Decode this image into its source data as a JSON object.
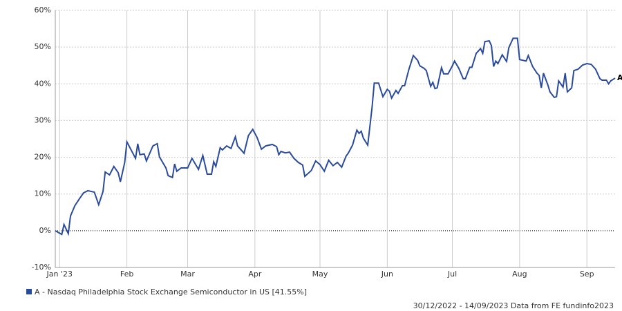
{
  "chart_data": {
    "type": "line",
    "x": [
      0,
      3,
      4,
      6,
      7,
      9,
      11,
      13,
      15,
      18,
      20,
      22,
      23,
      25,
      27,
      29,
      30,
      32,
      33,
      37,
      38,
      39,
      41,
      42,
      45,
      47,
      48,
      51,
      52,
      54,
      55,
      56,
      58,
      61,
      63,
      66,
      68,
      70,
      72,
      73,
      74,
      76,
      77,
      79,
      81,
      83,
      84,
      87,
      89,
      91,
      93,
      95,
      97,
      100,
      102,
      103,
      104,
      106,
      108,
      110,
      112,
      114,
      115,
      118,
      120,
      122,
      124,
      126,
      128,
      130,
      132,
      134,
      135,
      137,
      139,
      140,
      141,
      142,
      144,
      146,
      147,
      149,
      151,
      153,
      154,
      155,
      157,
      158,
      160,
      161,
      163,
      165,
      167,
      168,
      170,
      171,
      173,
      174,
      175,
      176,
      178,
      179,
      181,
      183,
      184,
      186,
      188,
      189,
      191,
      192,
      194,
      196,
      197,
      198,
      200,
      201,
      202,
      203,
      204,
      206,
      208,
      209,
      211,
      213,
      214,
      217,
      218,
      220,
      222,
      223,
      224,
      225,
      227,
      228,
      230,
      231,
      232,
      234,
      235,
      236,
      238,
      239,
      241,
      243,
      245,
      247,
      249,
      251,
      252,
      254,
      255,
      256,
      258
    ],
    "series": [
      {
        "name": "A - Nasdaq Philadelphia Stock Exchange Semiconductor in US [41.55%]",
        "end_label": "A",
        "color": "#2a4a9b",
        "values": [
          0,
          -1,
          1.7,
          -0.8,
          4,
          6.8,
          8.6,
          10.3,
          10.9,
          10.5,
          7.1,
          10.7,
          16,
          15.2,
          17.5,
          15.8,
          13.3,
          18.6,
          24.2,
          19.7,
          23.7,
          20.7,
          20.9,
          19,
          23.1,
          23.7,
          20.1,
          17.1,
          15,
          14.5,
          18.2,
          16.2,
          17.1,
          17.1,
          19.7,
          16.7,
          20.5,
          15.4,
          15.4,
          18.8,
          17.5,
          22.6,
          22,
          23.1,
          22.4,
          25.6,
          23.1,
          21.1,
          25.9,
          27.6,
          25.4,
          22.2,
          23.1,
          23.5,
          22.9,
          20.7,
          21.6,
          21.2,
          21.4,
          19.7,
          18.6,
          17.9,
          14.8,
          16.4,
          19,
          18,
          16.2,
          19.2,
          17.7,
          18.6,
          17.3,
          20.3,
          21.1,
          23.3,
          27.4,
          26.5,
          27.1,
          25.2,
          23.3,
          33.6,
          40.2,
          40.2,
          36.5,
          38.5,
          38,
          36.1,
          38.2,
          37.4,
          39.5,
          39.5,
          44,
          47.7,
          46.4,
          44.9,
          44.2,
          43.6,
          39.3,
          40.4,
          38.7,
          38.9,
          44.4,
          42.7,
          42.7,
          44.9,
          46.2,
          44.2,
          41.4,
          41.4,
          44.5,
          44.5,
          48.3,
          49.6,
          48.3,
          51.5,
          51.7,
          50.4,
          44.7,
          46.2,
          45.5,
          47.9,
          46.1,
          49.8,
          52.4,
          52.4,
          46.6,
          46.2,
          47.7,
          44.7,
          42.9,
          42.3,
          38.9,
          42.9,
          39.7,
          37.8,
          36.3,
          36.5,
          40.8,
          39.1,
          42.9,
          37.8,
          38.9,
          43.6,
          44,
          45.1,
          45.5,
          45.3,
          44,
          41.4,
          41,
          41,
          40,
          40.8,
          41.55
        ]
      }
    ],
    "xlim": [
      0,
      258
    ],
    "xticks": [
      {
        "value": 2,
        "label": "Jan '23"
      },
      {
        "value": 33,
        "label": "Feb"
      },
      {
        "value": 61,
        "label": "Mar"
      },
      {
        "value": 92,
        "label": "Apr"
      },
      {
        "value": 122,
        "label": "May"
      },
      {
        "value": 153,
        "label": "Jun"
      },
      {
        "value": 183,
        "label": "Jul"
      },
      {
        "value": 214,
        "label": "Aug"
      },
      {
        "value": 245,
        "label": "Sep"
      }
    ],
    "ylim": [
      -10,
      60
    ],
    "yticks": [
      {
        "value": -10,
        "label": "-10%"
      },
      {
        "value": 0,
        "label": "0%"
      },
      {
        "value": 10,
        "label": "10%"
      },
      {
        "value": 20,
        "label": "20%"
      },
      {
        "value": 30,
        "label": "30%"
      },
      {
        "value": 40,
        "label": "40%"
      },
      {
        "value": 50,
        "label": "50%"
      },
      {
        "value": 60,
        "label": "60%"
      }
    ],
    "grid": true,
    "footer": "30/12/2022 - 14/09/2023 Data from FE fundinfo2023"
  }
}
